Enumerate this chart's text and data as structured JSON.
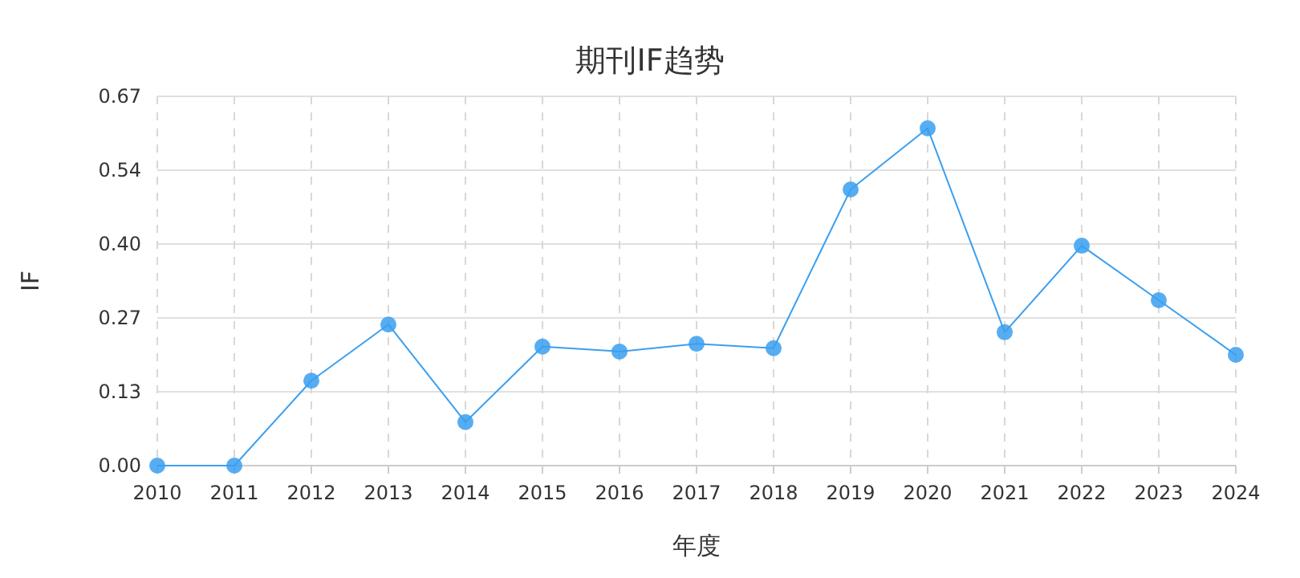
{
  "chart_data": {
    "type": "line",
    "title": "期刊IF趋势",
    "xlabel": "年度",
    "ylabel": "IF",
    "categories": [
      "2010",
      "2011",
      "2012",
      "2013",
      "2014",
      "2015",
      "2016",
      "2017",
      "2018",
      "2019",
      "2020",
      "2021",
      "2022",
      "2023",
      "2024"
    ],
    "series": [
      {
        "color": "#3a9ff0",
        "values": [
          0,
          0,
          0.154,
          0.256,
          0.079,
          0.216,
          0.207,
          0.221,
          0.213,
          0.501,
          0.612,
          0.242,
          0.399,
          0.3,
          0.201
        ]
      }
    ],
    "ylim": [
      0,
      0.67
    ],
    "yticks": [
      {
        "value": 0,
        "label": "0.00"
      },
      {
        "value": 0.134,
        "label": "0.13"
      },
      {
        "value": 0.268,
        "label": "0.27"
      },
      {
        "value": 0.402,
        "label": "0.40"
      },
      {
        "value": 0.536,
        "label": "0.54"
      },
      {
        "value": 0.67,
        "label": "0.67"
      }
    ],
    "grid": true,
    "marker": "circle",
    "line_style": "solid"
  }
}
